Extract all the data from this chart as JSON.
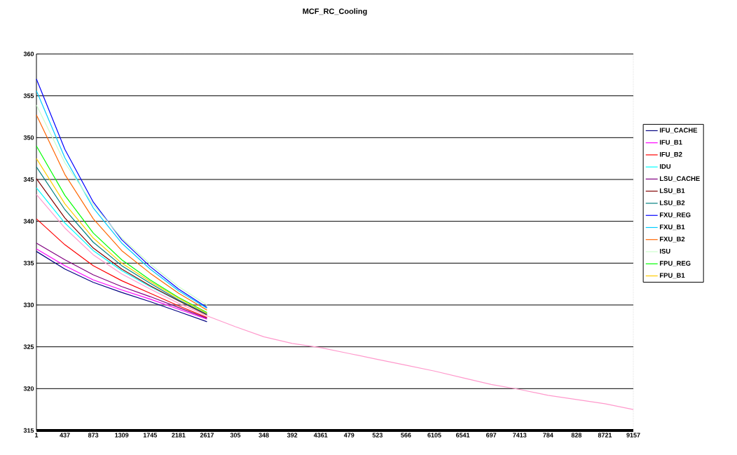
{
  "chart_data": {
    "type": "line",
    "title": "MCF_RC_Cooling",
    "categories": [
      "1",
      "437",
      "873",
      "1309",
      "1745",
      "2181",
      "2617",
      "305",
      "348",
      "392",
      "4361",
      "479",
      "523",
      "566",
      "6105",
      "6541",
      "697",
      "7413",
      "784",
      "828",
      "8721",
      "9157"
    ],
    "series": [
      {
        "name": "IFU_CACHE",
        "color": "#000080",
        "values": [
          336.4,
          334.3,
          332.7,
          331.5,
          330.4,
          329.2,
          328.0,
          null,
          null,
          null,
          null,
          null,
          null,
          null,
          null,
          null,
          null,
          null,
          null,
          null,
          null,
          null
        ]
      },
      {
        "name": "IFU_B1",
        "color": "#ff00ff",
        "values": [
          336.7,
          334.7,
          333.0,
          331.8,
          330.7,
          329.5,
          328.3,
          null,
          null,
          null,
          null,
          null,
          null,
          null,
          null,
          null,
          null,
          null,
          null,
          null,
          null,
          null
        ]
      },
      {
        "name": "IFU_B2",
        "color": "#ff0000",
        "values": [
          340.3,
          337.2,
          334.7,
          332.9,
          331.4,
          329.9,
          328.5,
          null,
          null,
          null,
          null,
          null,
          null,
          null,
          null,
          null,
          null,
          null,
          null,
          null,
          null,
          null
        ]
      },
      {
        "name": "IDU",
        "color": "#00ffff",
        "values": [
          344.0,
          339.8,
          336.5,
          334.1,
          332.2,
          330.5,
          328.9,
          null,
          null,
          null,
          null,
          null,
          null,
          null,
          null,
          null,
          null,
          null,
          null,
          null,
          null,
          null
        ]
      },
      {
        "name": "LSU_CACHE",
        "color": "#800080",
        "values": [
          337.4,
          335.4,
          333.6,
          332.2,
          331.0,
          329.7,
          328.4,
          null,
          null,
          null,
          null,
          null,
          null,
          null,
          null,
          null,
          null,
          null,
          null,
          null,
          null,
          null
        ]
      },
      {
        "name": "LSU_B1",
        "color": "#800000",
        "values": [
          345.1,
          340.4,
          336.8,
          334.3,
          332.3,
          330.5,
          328.8,
          null,
          null,
          null,
          null,
          null,
          null,
          null,
          null,
          null,
          null,
          null,
          null,
          null,
          null,
          null
        ]
      },
      {
        "name": "LSU_B2",
        "color": "#008080",
        "values": [
          346.5,
          341.4,
          337.5,
          334.7,
          332.6,
          330.6,
          328.9,
          null,
          null,
          null,
          null,
          null,
          null,
          null,
          null,
          null,
          null,
          null,
          null,
          null,
          null,
          null
        ]
      },
      {
        "name": "FXU_REG",
        "color": "#0000ff",
        "values": [
          357.0,
          348.6,
          342.3,
          337.8,
          334.6,
          331.9,
          329.7,
          null,
          null,
          null,
          null,
          null,
          null,
          null,
          null,
          null,
          null,
          null,
          null,
          null,
          null,
          null
        ]
      },
      {
        "name": "FXU_B1",
        "color": "#00ccff",
        "values": [
          355.6,
          347.6,
          341.6,
          337.4,
          334.3,
          331.7,
          329.6,
          null,
          null,
          null,
          null,
          null,
          null,
          null,
          null,
          null,
          null,
          null,
          null,
          null,
          null,
          null
        ]
      },
      {
        "name": "FXU_B2",
        "color": "#ff6600",
        "values": [
          352.7,
          345.6,
          340.3,
          336.5,
          333.8,
          331.4,
          329.4,
          null,
          null,
          null,
          null,
          null,
          null,
          null,
          null,
          null,
          null,
          null,
          null,
          null,
          null,
          null
        ]
      },
      {
        "name": "ISU",
        "color": "#ccffcc",
        "values": [
          353.9,
          347.0,
          342.0,
          338.0,
          334.9,
          332.2,
          330.0,
          null,
          null,
          null,
          null,
          null,
          null,
          null,
          null,
          null,
          null,
          null,
          null,
          null,
          null,
          null
        ]
      },
      {
        "name": "FPU_REG",
        "color": "#00ff00",
        "values": [
          349.0,
          343.1,
          338.6,
          335.4,
          333.0,
          330.9,
          329.1,
          null,
          null,
          null,
          null,
          null,
          null,
          null,
          null,
          null,
          null,
          null,
          null,
          null,
          null,
          null
        ]
      },
      {
        "name": "FPU_B1",
        "color": "#ffcc00",
        "values": [
          347.5,
          342.1,
          338.0,
          335.0,
          332.8,
          330.8,
          329.0,
          null,
          null,
          null,
          null,
          null,
          null,
          null,
          null,
          null,
          null,
          null,
          null,
          null,
          null,
          null
        ]
      },
      {
        "color": "#ff99cc",
        "values": [
          343.2,
          339.2,
          336.0,
          333.7,
          331.9,
          330.2,
          328.7,
          327.4,
          326.2,
          325.4,
          324.9,
          324.2,
          323.5,
          322.8,
          322.1,
          321.3,
          320.5,
          319.9,
          319.2,
          318.7,
          318.2,
          317.5
        ]
      }
    ],
    "ylim": [
      315,
      360
    ],
    "yticks": [
      315,
      320,
      325,
      330,
      335,
      340,
      345,
      350,
      355,
      360
    ],
    "grid": "y",
    "legend": "right"
  }
}
